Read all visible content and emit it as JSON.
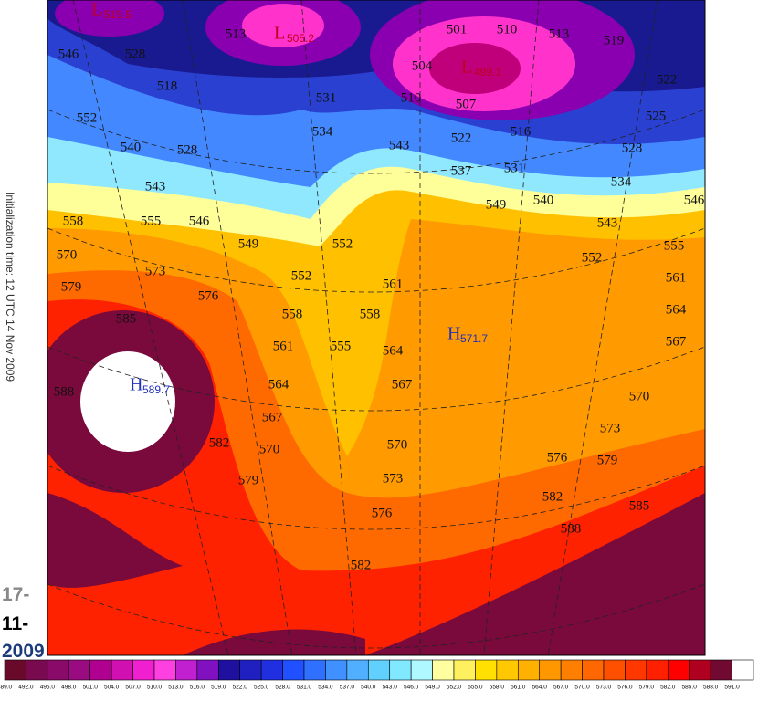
{
  "map": {
    "init_time": "Initialization time: 12 UTC 14 Nov 2009",
    "date": [
      "17-",
      "11-",
      "2009"
    ],
    "centers": [
      {
        "label": "L",
        "value": "515.5"
      },
      {
        "label": "L",
        "value": "505.2"
      },
      {
        "label": "L",
        "value": "499.1"
      },
      {
        "label": "H",
        "value": "589.7"
      },
      {
        "label": "H",
        "value": "571.7"
      }
    ],
    "contour_labels": [
      513,
      501,
      510,
      513,
      519,
      522,
      525,
      528,
      534,
      546,
      543,
      555,
      561,
      564,
      567,
      570,
      573,
      579,
      585,
      588,
      582,
      576,
      504,
      507,
      510,
      516,
      522,
      531,
      537,
      540,
      549,
      552,
      543,
      534,
      531,
      546,
      528,
      518,
      552,
      540,
      528,
      543,
      558,
      555,
      546,
      549,
      552,
      570,
      573,
      579,
      576,
      552,
      561,
      558,
      558,
      585,
      561,
      555,
      564,
      588,
      564,
      567,
      567,
      582,
      570,
      570,
      579,
      573,
      576,
      582
    ]
  },
  "colorbar": {
    "labels": [
      "489.0",
      "492.0",
      "495.0",
      "498.0",
      "501.0",
      "504.0",
      "507.0",
      "510.0",
      "513.0",
      "516.0",
      "519.0",
      "522.0",
      "525.0",
      "528.0",
      "531.0",
      "534.0",
      "537.0",
      "540.0",
      "543.0",
      "546.0",
      "549.0",
      "552.0",
      "555.0",
      "558.0",
      "561.0",
      "564.0",
      "567.0",
      "570.0",
      "573.0",
      "576.0",
      "579.0",
      "582.0",
      "585.0",
      "588.0",
      "591.0"
    ]
  }
}
